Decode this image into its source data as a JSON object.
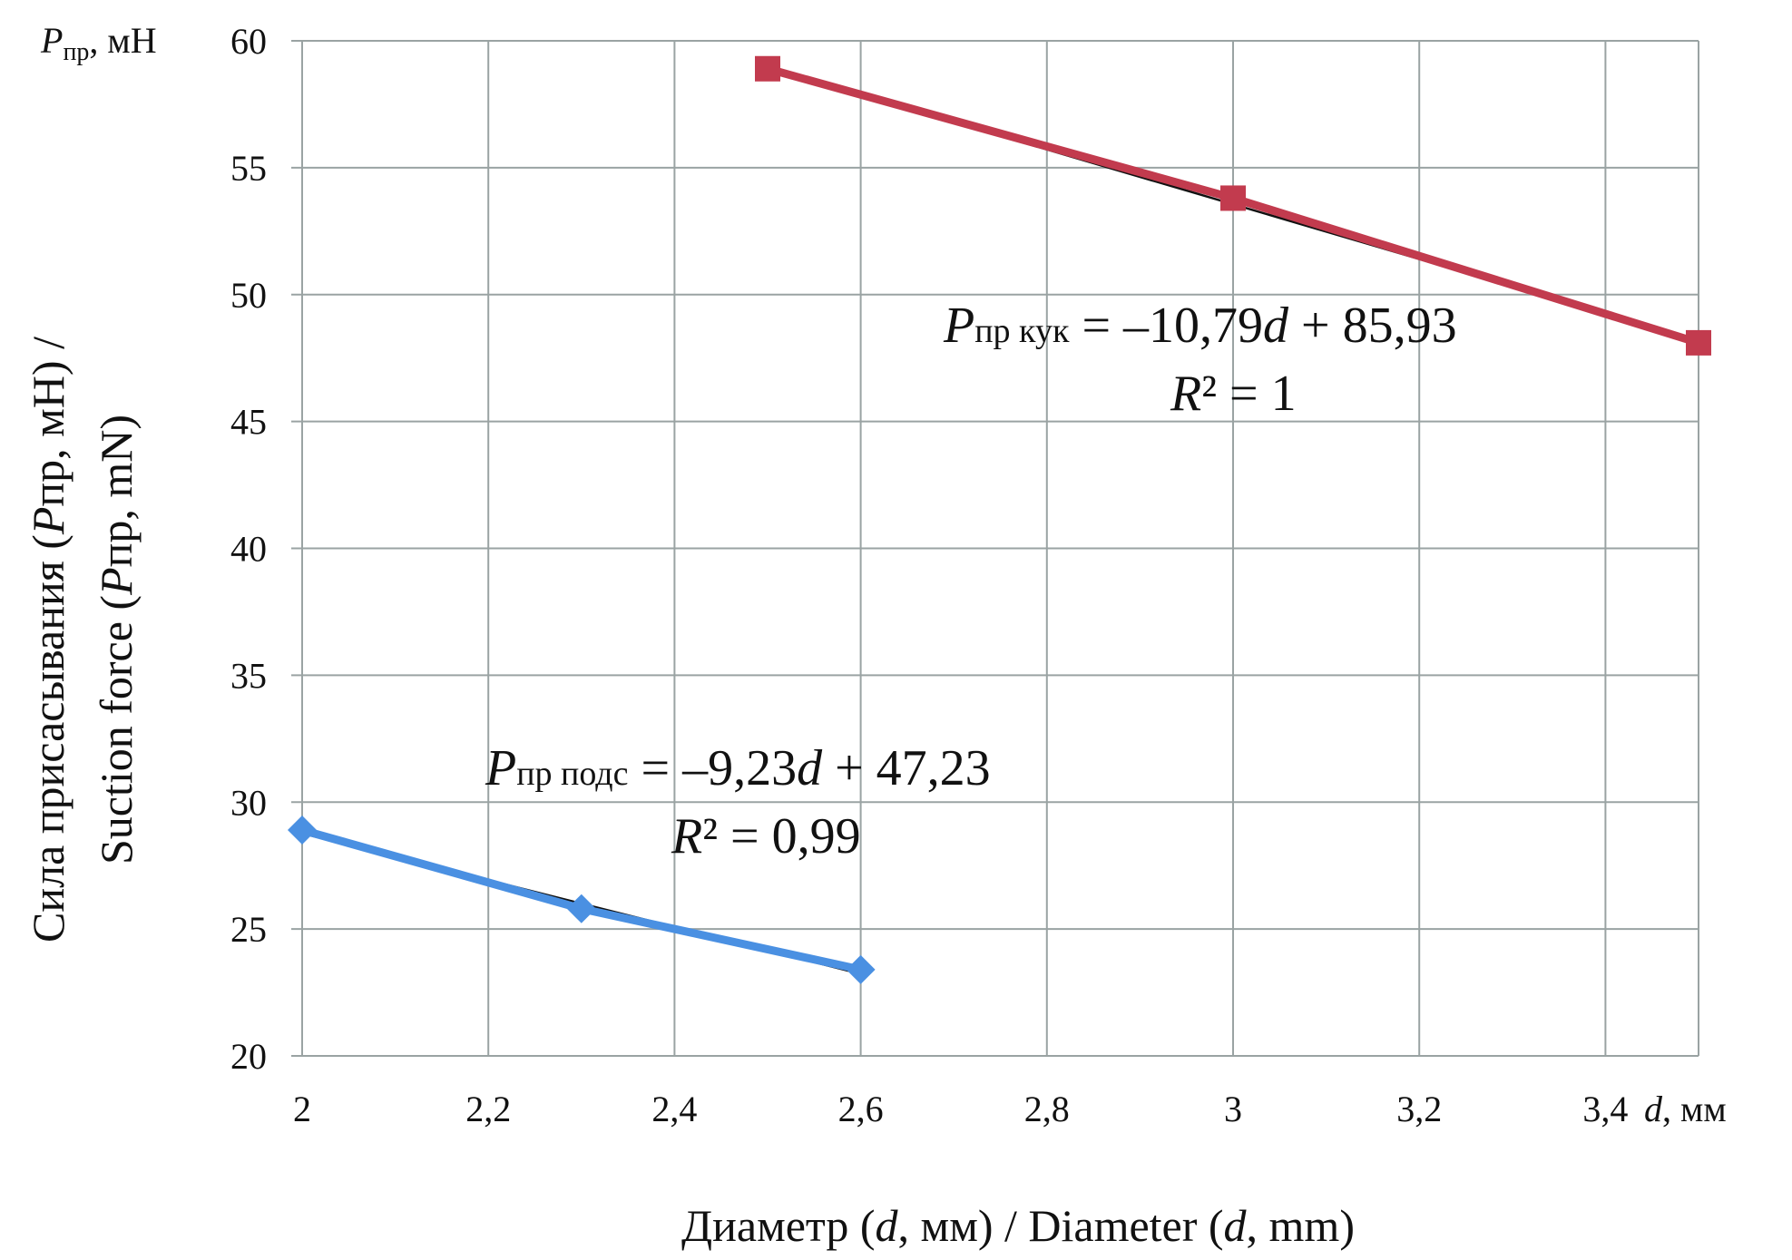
{
  "chart_data": {
    "type": "scatter",
    "x_range": [
      2,
      3.5
    ],
    "y_range": [
      20,
      60
    ],
    "x_ticks": [
      {
        "value": 2,
        "label": "2"
      },
      {
        "value": 2.2,
        "label": "2,2"
      },
      {
        "value": 2.4,
        "label": "2,4"
      },
      {
        "value": 2.6,
        "label": "2,6"
      },
      {
        "value": 2.8,
        "label": "2,8"
      },
      {
        "value": 3,
        "label": "3"
      },
      {
        "value": 3.2,
        "label": "3,2"
      },
      {
        "value": 3.4,
        "label": "3,4"
      }
    ],
    "y_ticks": [
      {
        "value": 20,
        "label": "20"
      },
      {
        "value": 25,
        "label": "25"
      },
      {
        "value": 30,
        "label": "30"
      },
      {
        "value": 35,
        "label": "35"
      },
      {
        "value": 40,
        "label": "40"
      },
      {
        "value": 45,
        "label": "45"
      },
      {
        "value": 50,
        "label": "50"
      },
      {
        "value": 55,
        "label": "55"
      },
      {
        "value": 60,
        "label": "60"
      }
    ],
    "grid": true,
    "x_axis_unit": {
      "var": "d",
      "rest": ", мм"
    },
    "y_axis_unit": {
      "var": "P",
      "sub": "пр",
      "rest": ", мН"
    },
    "xlabel": {
      "pre": "Диаметр (",
      "v1": "d",
      "mid": ", мм) / Diameter (",
      "v2": "d",
      "post": ", mm)"
    },
    "ylabel": {
      "line1": {
        "pre": "Сила присасывания (",
        "var": "P",
        "sub": "пр",
        "post": ", мН) /"
      },
      "line2": {
        "pre": "Suction force (",
        "var": "P",
        "sub": "пр",
        "post": ", mN)"
      }
    },
    "series": [
      {
        "marker": "diamond",
        "color": "#4a90e2",
        "x": [
          2,
          2.3,
          2.6
        ],
        "y": [
          28.9,
          25.8,
          23.4
        ],
        "trendline": {
          "slope": -9.23,
          "intercept": 47.23,
          "x_range": [
            2,
            2.6
          ]
        },
        "equation": {
          "var": "P",
          "sub": "пр подс",
          "rhs1": " = –9,23",
          "var2": "d",
          "rhs2": " + 47,23"
        },
        "r2": {
          "var": "R",
          "rest": "² = 0,99"
        }
      },
      {
        "marker": "square",
        "color": "#c23b4e",
        "x": [
          2.5,
          3,
          3.5
        ],
        "y": [
          58.9,
          53.8,
          48.1
        ],
        "trendline": {
          "slope": -10.79,
          "intercept": 85.93,
          "x_range": [
            2.5,
            3.5
          ]
        },
        "equation": {
          "var": "P",
          "sub": "пр кук",
          "rhs1": " = –10,79",
          "var2": "d",
          "rhs2": " + 85,93"
        },
        "r2": {
          "var": "R",
          "rest": "² = 1"
        }
      }
    ]
  }
}
